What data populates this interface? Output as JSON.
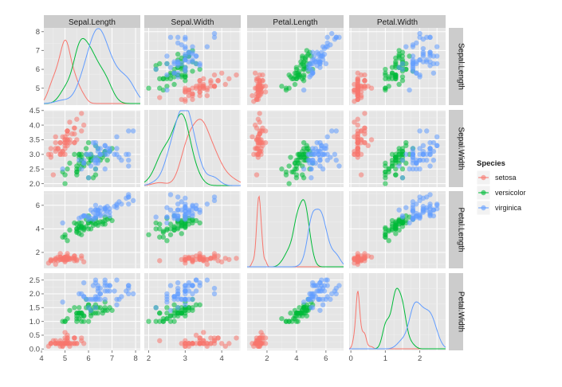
{
  "chart_data": {
    "type": "scatter",
    "title": "",
    "facet_layout": "pairs-matrix",
    "variables": [
      {
        "key": "sl",
        "label": "Sepal.Length",
        "range": [
          4.1,
          8.2
        ],
        "ticks": [
          4,
          5,
          6,
          7,
          8
        ]
      },
      {
        "key": "sw",
        "label": "Sepal.Width",
        "range": [
          1.88,
          4.52
        ],
        "ticks": [
          2.0,
          2.5,
          3.0,
          3.5,
          4.0,
          4.5
        ]
      },
      {
        "key": "pl",
        "label": "Petal.Length",
        "range": [
          0.65,
          7.2
        ],
        "ticks": [
          2,
          4,
          6
        ]
      },
      {
        "key": "pw",
        "label": "Petal.Width",
        "range": [
          -0.05,
          2.75
        ],
        "ticks": [
          0.0,
          0.5,
          1.0,
          1.5,
          2.0,
          2.5
        ]
      }
    ],
    "bottom_axis_ticks": [
      [
        4,
        5,
        6,
        7,
        8
      ],
      [
        2,
        3,
        4
      ],
      [
        2,
        4,
        6
      ],
      [
        0,
        1,
        2
      ]
    ],
    "left_axis_ticks": [
      [
        5,
        6,
        7,
        8
      ],
      [
        2.0,
        2.5,
        3.0,
        3.5,
        4.0,
        4.5
      ],
      [
        2,
        4,
        6
      ],
      [
        0.0,
        0.5,
        1.0,
        1.5,
        2.0,
        2.5
      ]
    ],
    "legend": {
      "title": "Species",
      "placement": "right",
      "items": [
        "setosa",
        "versicolor",
        "virginica"
      ]
    },
    "series": [
      {
        "name": "setosa",
        "color": "#F8766D",
        "density_peak": {
          "sl": 1.25,
          "sw": 1.1,
          "pl": 2.4,
          "pw": 6.0
        },
        "points": [
          [
            5.1,
            3.5,
            1.4,
            0.2
          ],
          [
            4.9,
            3.0,
            1.4,
            0.2
          ],
          [
            4.7,
            3.2,
            1.3,
            0.2
          ],
          [
            4.6,
            3.1,
            1.5,
            0.2
          ],
          [
            5.0,
            3.6,
            1.4,
            0.2
          ],
          [
            5.4,
            3.9,
            1.7,
            0.4
          ],
          [
            4.6,
            3.4,
            1.4,
            0.3
          ],
          [
            5.0,
            3.4,
            1.5,
            0.2
          ],
          [
            4.4,
            2.9,
            1.4,
            0.2
          ],
          [
            4.9,
            3.1,
            1.5,
            0.1
          ],
          [
            5.4,
            3.7,
            1.5,
            0.2
          ],
          [
            4.8,
            3.4,
            1.6,
            0.2
          ],
          [
            4.8,
            3.0,
            1.4,
            0.1
          ],
          [
            4.3,
            3.0,
            1.1,
            0.1
          ],
          [
            5.8,
            4.0,
            1.2,
            0.2
          ],
          [
            5.7,
            4.4,
            1.5,
            0.4
          ],
          [
            5.4,
            3.9,
            1.3,
            0.4
          ],
          [
            5.1,
            3.5,
            1.4,
            0.3
          ],
          [
            5.7,
            3.8,
            1.7,
            0.3
          ],
          [
            5.1,
            3.8,
            1.5,
            0.3
          ],
          [
            5.4,
            3.4,
            1.7,
            0.2
          ],
          [
            5.1,
            3.7,
            1.5,
            0.4
          ],
          [
            4.6,
            3.6,
            1.0,
            0.2
          ],
          [
            5.1,
            3.3,
            1.7,
            0.5
          ],
          [
            4.8,
            3.4,
            1.9,
            0.2
          ],
          [
            5.0,
            3.0,
            1.6,
            0.2
          ],
          [
            5.0,
            3.4,
            1.6,
            0.4
          ],
          [
            5.2,
            3.5,
            1.5,
            0.2
          ],
          [
            5.2,
            3.4,
            1.4,
            0.2
          ],
          [
            4.7,
            3.2,
            1.6,
            0.2
          ],
          [
            4.8,
            3.1,
            1.6,
            0.2
          ],
          [
            5.4,
            3.4,
            1.5,
            0.4
          ],
          [
            5.2,
            4.1,
            1.5,
            0.1
          ],
          [
            5.5,
            4.2,
            1.4,
            0.2
          ],
          [
            4.9,
            3.1,
            1.5,
            0.2
          ],
          [
            5.0,
            3.2,
            1.2,
            0.2
          ],
          [
            5.5,
            3.5,
            1.3,
            0.2
          ],
          [
            4.9,
            3.6,
            1.4,
            0.1
          ],
          [
            4.4,
            3.0,
            1.3,
            0.2
          ],
          [
            5.1,
            3.4,
            1.5,
            0.2
          ],
          [
            5.0,
            3.5,
            1.3,
            0.3
          ],
          [
            4.5,
            2.3,
            1.3,
            0.3
          ],
          [
            4.4,
            3.2,
            1.3,
            0.2
          ],
          [
            5.0,
            3.5,
            1.6,
            0.6
          ],
          [
            5.1,
            3.8,
            1.9,
            0.4
          ],
          [
            4.8,
            3.0,
            1.4,
            0.3
          ],
          [
            5.1,
            3.8,
            1.6,
            0.2
          ],
          [
            4.6,
            3.2,
            1.4,
            0.2
          ],
          [
            5.3,
            3.7,
            1.5,
            0.2
          ],
          [
            5.0,
            3.3,
            1.4,
            0.2
          ]
        ]
      },
      {
        "name": "versicolor",
        "color": "#00BA38",
        "density_peak": {
          "sl": 0.78,
          "sw": 1.2,
          "pl": 0.85,
          "pw": 2.2
        },
        "points": [
          [
            7.0,
            3.2,
            4.7,
            1.4
          ],
          [
            6.4,
            3.2,
            4.5,
            1.5
          ],
          [
            6.9,
            3.1,
            4.9,
            1.5
          ],
          [
            5.5,
            2.3,
            4.0,
            1.3
          ],
          [
            6.5,
            2.8,
            4.6,
            1.5
          ],
          [
            5.7,
            2.8,
            4.5,
            1.3
          ],
          [
            6.3,
            3.3,
            4.7,
            1.6
          ],
          [
            4.9,
            2.4,
            3.3,
            1.0
          ],
          [
            6.6,
            2.9,
            4.6,
            1.3
          ],
          [
            5.2,
            2.7,
            3.9,
            1.4
          ],
          [
            5.0,
            2.0,
            3.5,
            1.0
          ],
          [
            5.9,
            3.0,
            4.2,
            1.5
          ],
          [
            6.0,
            2.2,
            4.0,
            1.0
          ],
          [
            6.1,
            2.9,
            4.7,
            1.4
          ],
          [
            5.6,
            2.9,
            3.6,
            1.3
          ],
          [
            6.7,
            3.1,
            4.4,
            1.4
          ],
          [
            5.6,
            3.0,
            4.5,
            1.5
          ],
          [
            5.8,
            2.7,
            4.1,
            1.0
          ],
          [
            6.2,
            2.2,
            4.5,
            1.5
          ],
          [
            5.6,
            2.5,
            3.9,
            1.1
          ],
          [
            5.9,
            3.2,
            4.8,
            1.8
          ],
          [
            6.1,
            2.8,
            4.0,
            1.3
          ],
          [
            6.3,
            2.5,
            4.9,
            1.5
          ],
          [
            6.1,
            2.8,
            4.7,
            1.2
          ],
          [
            6.4,
            2.9,
            4.3,
            1.3
          ],
          [
            6.6,
            3.0,
            4.4,
            1.4
          ],
          [
            6.8,
            2.8,
            4.8,
            1.4
          ],
          [
            6.7,
            3.0,
            5.0,
            1.7
          ],
          [
            6.0,
            2.9,
            4.5,
            1.5
          ],
          [
            5.7,
            2.6,
            3.5,
            1.0
          ],
          [
            5.5,
            2.4,
            3.8,
            1.1
          ],
          [
            5.5,
            2.4,
            3.7,
            1.0
          ],
          [
            5.8,
            2.7,
            3.9,
            1.2
          ],
          [
            6.0,
            2.7,
            5.1,
            1.6
          ],
          [
            5.4,
            3.0,
            4.5,
            1.5
          ],
          [
            6.0,
            3.4,
            4.5,
            1.6
          ],
          [
            6.7,
            3.1,
            4.7,
            1.5
          ],
          [
            6.3,
            2.3,
            4.4,
            1.3
          ],
          [
            5.6,
            3.0,
            4.1,
            1.3
          ],
          [
            5.5,
            2.5,
            4.0,
            1.3
          ],
          [
            5.5,
            2.6,
            4.4,
            1.2
          ],
          [
            6.1,
            3.0,
            4.6,
            1.4
          ],
          [
            5.8,
            2.6,
            4.0,
            1.2
          ],
          [
            5.0,
            2.3,
            3.3,
            1.0
          ],
          [
            5.6,
            2.7,
            4.2,
            1.3
          ],
          [
            5.7,
            3.0,
            4.2,
            1.2
          ],
          [
            5.7,
            2.9,
            4.2,
            1.3
          ],
          [
            6.2,
            2.9,
            4.3,
            1.3
          ],
          [
            5.1,
            2.5,
            3.0,
            1.1
          ],
          [
            5.7,
            2.8,
            4.1,
            1.3
          ]
        ]
      },
      {
        "name": "virginica",
        "color": "#619CFF",
        "density_peak": {
          "sl": 0.6,
          "sw": 1.1,
          "pl": 0.8,
          "pw": 1.9
        },
        "points": [
          [
            6.3,
            3.3,
            6.0,
            2.5
          ],
          [
            5.8,
            2.7,
            5.1,
            1.9
          ],
          [
            7.1,
            3.0,
            5.9,
            2.1
          ],
          [
            6.3,
            2.9,
            5.6,
            1.8
          ],
          [
            6.5,
            3.0,
            5.8,
            2.2
          ],
          [
            7.6,
            3.0,
            6.6,
            2.1
          ],
          [
            4.9,
            2.5,
            4.5,
            1.7
          ],
          [
            7.3,
            2.9,
            6.3,
            1.8
          ],
          [
            6.7,
            2.5,
            5.8,
            1.8
          ],
          [
            7.2,
            3.6,
            6.1,
            2.5
          ],
          [
            6.5,
            3.2,
            5.1,
            2.0
          ],
          [
            6.4,
            2.7,
            5.3,
            1.9
          ],
          [
            6.8,
            3.0,
            5.5,
            2.1
          ],
          [
            5.7,
            2.5,
            5.0,
            2.0
          ],
          [
            5.8,
            2.8,
            5.1,
            2.4
          ],
          [
            6.4,
            3.2,
            5.3,
            2.3
          ],
          [
            6.5,
            3.0,
            5.5,
            1.8
          ],
          [
            7.7,
            3.8,
            6.7,
            2.2
          ],
          [
            7.7,
            2.6,
            6.9,
            2.3
          ],
          [
            6.0,
            2.2,
            5.0,
            1.5
          ],
          [
            6.9,
            3.2,
            5.7,
            2.3
          ],
          [
            5.6,
            2.8,
            4.9,
            2.0
          ],
          [
            7.7,
            2.8,
            6.7,
            2.0
          ],
          [
            6.3,
            2.7,
            4.9,
            1.8
          ],
          [
            6.7,
            3.3,
            5.7,
            2.1
          ],
          [
            7.2,
            3.2,
            6.0,
            1.8
          ],
          [
            6.2,
            2.8,
            4.8,
            1.8
          ],
          [
            6.1,
            3.0,
            4.9,
            1.8
          ],
          [
            6.4,
            2.8,
            5.6,
            2.1
          ],
          [
            7.2,
            3.0,
            5.8,
            1.6
          ],
          [
            7.4,
            2.8,
            6.1,
            1.9
          ],
          [
            7.9,
            3.8,
            6.4,
            2.0
          ],
          [
            6.4,
            2.8,
            5.6,
            2.2
          ],
          [
            6.3,
            2.8,
            5.1,
            1.5
          ],
          [
            6.1,
            2.6,
            5.6,
            1.4
          ],
          [
            7.7,
            3.0,
            6.1,
            2.3
          ],
          [
            6.3,
            3.4,
            5.6,
            2.4
          ],
          [
            6.4,
            3.1,
            5.5,
            1.8
          ],
          [
            6.0,
            3.0,
            4.8,
            1.8
          ],
          [
            6.9,
            3.1,
            5.4,
            2.1
          ],
          [
            6.7,
            3.1,
            5.6,
            2.4
          ],
          [
            6.9,
            3.1,
            5.1,
            2.3
          ],
          [
            5.8,
            2.7,
            5.1,
            1.9
          ],
          [
            6.8,
            3.2,
            5.9,
            2.3
          ],
          [
            6.7,
            3.3,
            5.7,
            2.5
          ],
          [
            6.7,
            3.0,
            5.2,
            2.3
          ],
          [
            6.3,
            2.5,
            5.0,
            1.9
          ],
          [
            6.5,
            3.0,
            5.2,
            2.0
          ],
          [
            6.2,
            3.4,
            5.4,
            2.3
          ],
          [
            5.9,
            3.0,
            5.1,
            1.8
          ]
        ]
      }
    ]
  }
}
